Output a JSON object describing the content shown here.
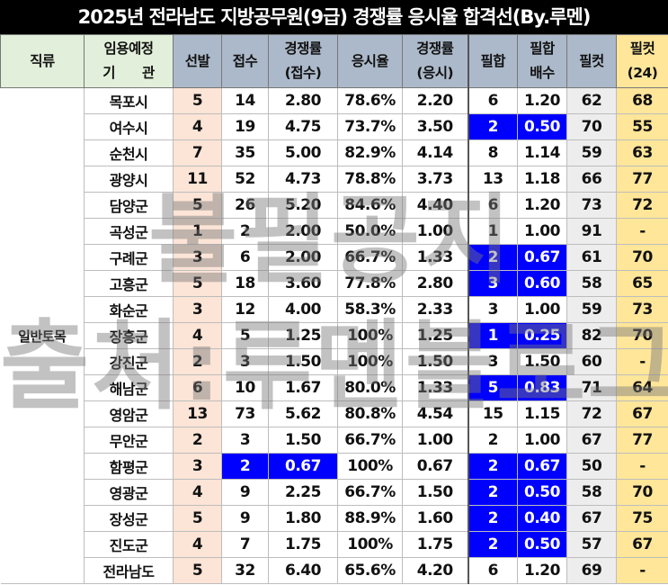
{
  "title": "2025년 전라남도 지방공무원(9급) 경쟁률 응시율 합격선(By.루멘)",
  "headers": {
    "jikryu": "직류",
    "org_1": "임용예정",
    "org_2": "기　　관",
    "seonbal": "선발",
    "jeopsu": "접수",
    "rate_apply_1": "경쟁률",
    "rate_apply_2": "(접수)",
    "attend": "응시율",
    "rate_exam_1": "경쟁률",
    "rate_exam_2": "(응시)",
    "pilhap": "필합",
    "pilhap_ratio_1": "필합",
    "pilhap_ratio_2": "배수",
    "cut": "필컷",
    "cut24_1": "필컷",
    "cut24_2": "(24)"
  },
  "jikryu_value": "일반토목",
  "rows": [
    {
      "org": "목포시",
      "sel": "5",
      "app": "14",
      "r1": "2.80",
      "att": "78.6%",
      "r2": "2.20",
      "ph": "6",
      "pr": "1.20",
      "cut": "62",
      "cut24": "68",
      "hl_app": false,
      "hl_ph": false
    },
    {
      "org": "여수시",
      "sel": "4",
      "app": "19",
      "r1": "4.75",
      "att": "73.7%",
      "r2": "3.50",
      "ph": "2",
      "pr": "0.50",
      "cut": "70",
      "cut24": "55",
      "hl_app": false,
      "hl_ph": true
    },
    {
      "org": "순천시",
      "sel": "7",
      "app": "35",
      "r1": "5.00",
      "att": "82.9%",
      "r2": "4.14",
      "ph": "8",
      "pr": "1.14",
      "cut": "59",
      "cut24": "63",
      "hl_app": false,
      "hl_ph": false
    },
    {
      "org": "광양시",
      "sel": "11",
      "app": "52",
      "r1": "4.73",
      "att": "78.8%",
      "r2": "3.73",
      "ph": "13",
      "pr": "1.18",
      "cut": "66",
      "cut24": "77",
      "hl_app": false,
      "hl_ph": false
    },
    {
      "org": "담양군",
      "sel": "5",
      "app": "26",
      "r1": "5.20",
      "att": "84.6%",
      "r2": "4.40",
      "ph": "6",
      "pr": "1.20",
      "cut": "73",
      "cut24": "72",
      "hl_app": false,
      "hl_ph": false
    },
    {
      "org": "곡성군",
      "sel": "1",
      "app": "2",
      "r1": "2.00",
      "att": "50.0%",
      "r2": "1.00",
      "ph": "1",
      "pr": "1.00",
      "cut": "91",
      "cut24": "-",
      "hl_app": false,
      "hl_ph": false
    },
    {
      "org": "구례군",
      "sel": "3",
      "app": "6",
      "r1": "2.00",
      "att": "66.7%",
      "r2": "1.33",
      "ph": "2",
      "pr": "0.67",
      "cut": "61",
      "cut24": "70",
      "hl_app": false,
      "hl_ph": true
    },
    {
      "org": "고흥군",
      "sel": "5",
      "app": "18",
      "r1": "3.60",
      "att": "77.8%",
      "r2": "2.80",
      "ph": "3",
      "pr": "0.60",
      "cut": "58",
      "cut24": "65",
      "hl_app": false,
      "hl_ph": true
    },
    {
      "org": "화순군",
      "sel": "3",
      "app": "12",
      "r1": "4.00",
      "att": "58.3%",
      "r2": "2.33",
      "ph": "3",
      "pr": "1.00",
      "cut": "59",
      "cut24": "73",
      "hl_app": false,
      "hl_ph": false
    },
    {
      "org": "장흥군",
      "sel": "4",
      "app": "5",
      "r1": "1.25",
      "att": "100%",
      "r2": "1.25",
      "ph": "1",
      "pr": "0.25",
      "cut": "82",
      "cut24": "70",
      "hl_app": false,
      "hl_ph": true
    },
    {
      "org": "강진군",
      "sel": "2",
      "app": "3",
      "r1": "1.50",
      "att": "100%",
      "r2": "1.50",
      "ph": "3",
      "pr": "1.50",
      "cut": "60",
      "cut24": "-",
      "hl_app": false,
      "hl_ph": false
    },
    {
      "org": "해남군",
      "sel": "6",
      "app": "10",
      "r1": "1.67",
      "att": "80.0%",
      "r2": "1.33",
      "ph": "5",
      "pr": "0.83",
      "cut": "71",
      "cut24": "64",
      "hl_app": false,
      "hl_ph": true
    },
    {
      "org": "영암군",
      "sel": "13",
      "app": "73",
      "r1": "5.62",
      "att": "80.8%",
      "r2": "4.54",
      "ph": "15",
      "pr": "1.15",
      "cut": "72",
      "cut24": "67",
      "hl_app": false,
      "hl_ph": false
    },
    {
      "org": "무안군",
      "sel": "2",
      "app": "3",
      "r1": "1.50",
      "att": "66.7%",
      "r2": "1.00",
      "ph": "2",
      "pr": "1.00",
      "cut": "67",
      "cut24": "77",
      "hl_app": false,
      "hl_ph": false
    },
    {
      "org": "함평군",
      "sel": "3",
      "app": "2",
      "r1": "0.67",
      "att": "100%",
      "r2": "0.67",
      "ph": "2",
      "pr": "0.67",
      "cut": "50",
      "cut24": "-",
      "hl_app": true,
      "hl_ph": true
    },
    {
      "org": "영광군",
      "sel": "4",
      "app": "9",
      "r1": "2.25",
      "att": "66.7%",
      "r2": "1.50",
      "ph": "2",
      "pr": "0.50",
      "cut": "58",
      "cut24": "70",
      "hl_app": false,
      "hl_ph": true
    },
    {
      "org": "장성군",
      "sel": "5",
      "app": "9",
      "r1": "1.80",
      "att": "88.9%",
      "r2": "1.60",
      "ph": "2",
      "pr": "0.40",
      "cut": "67",
      "cut24": "75",
      "hl_app": false,
      "hl_ph": true
    },
    {
      "org": "진도군",
      "sel": "4",
      "app": "7",
      "r1": "1.75",
      "att": "100%",
      "r2": "1.75",
      "ph": "2",
      "pr": "0.50",
      "cut": "57",
      "cut24": "67",
      "hl_app": false,
      "hl_ph": true
    },
    {
      "org": "전라남도",
      "sel": "5",
      "app": "32",
      "r1": "6.40",
      "att": "65.6%",
      "r2": "4.20",
      "ph": "6",
      "pr": "1.20",
      "cut": "69",
      "cut24": "-",
      "hl_app": false,
      "hl_ph": false
    }
  ],
  "watermark": {
    "line1": "불필공지",
    "line2": "출처:루멘블로그"
  },
  "colors": {
    "highlight": "#0000ff",
    "header_green": "#e2efda",
    "header_blue": "#acb9ca",
    "cut24": "#ffe699",
    "seonbal": "#fce4d6",
    "cut": "#ededed"
  }
}
